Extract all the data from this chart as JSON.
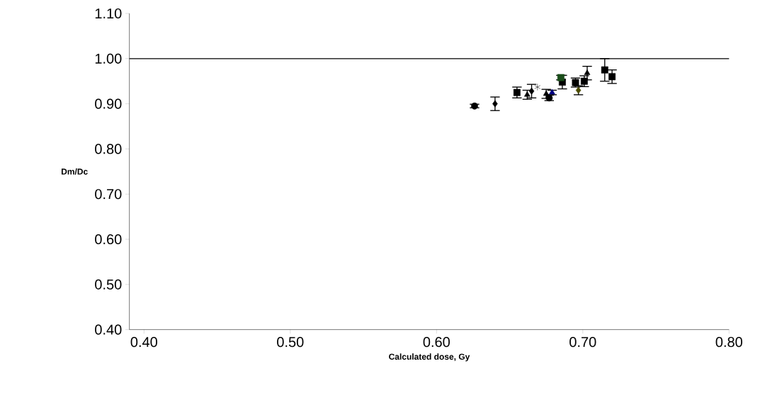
{
  "chart_data": {
    "type": "scatter",
    "xlabel": "Calculated dose, Gy",
    "ylabel": "Dm/Dc",
    "xlim": [
      0.39,
      0.8
    ],
    "ylim": [
      0.4,
      1.1
    ],
    "xticks": [
      {
        "value": 0.4,
        "label": "0.40"
      },
      {
        "value": 0.5,
        "label": "0.50"
      },
      {
        "value": 0.6,
        "label": "0.60"
      },
      {
        "value": 0.7,
        "label": "0.70"
      },
      {
        "value": 0.8,
        "label": "0.80"
      }
    ],
    "yticks": [
      {
        "value": 0.4,
        "label": "0.40"
      },
      {
        "value": 0.5,
        "label": "0.50"
      },
      {
        "value": 0.6,
        "label": "0.60"
      },
      {
        "value": 0.7,
        "label": "0.70"
      },
      {
        "value": 0.8,
        "label": "0.80"
      },
      {
        "value": 0.9,
        "label": "0.90"
      },
      {
        "value": 1.0,
        "label": "1.00"
      },
      {
        "value": 1.1,
        "label": "1.10"
      }
    ],
    "grid": false,
    "ref_lines": [
      {
        "axis": "y",
        "value": 1.0,
        "color": "#000000"
      }
    ],
    "series": [
      {
        "color": "#000000",
        "marker": "circle",
        "x": [
          0.626,
          0.677
        ],
        "values": [
          0.895,
          0.913
        ],
        "errors": [
          0.004,
          0.006
        ]
      },
      {
        "color": "#000000",
        "marker": "diamond",
        "x": [
          0.64,
          0.665
        ],
        "values": [
          0.9,
          0.928
        ],
        "errors": [
          0.015,
          0.015
        ]
      },
      {
        "color": "#4d4d00",
        "marker": "diamond",
        "x": [
          0.697
        ],
        "values": [
          0.93
        ],
        "errors": [
          0.01
        ]
      },
      {
        "color": "#000000",
        "marker": "square",
        "x": [
          0.655,
          0.686,
          0.695,
          0.701,
          0.72
        ],
        "values": [
          0.925,
          0.948,
          0.947,
          0.95,
          0.96
        ],
        "errors": [
          0.012,
          0.015,
          0.01,
          0.012,
          0.015
        ]
      },
      {
        "color": "#1a4d1a",
        "marker": "square",
        "x": [
          0.685
        ],
        "values": [
          0.958
        ],
        "errors": [
          0.005
        ]
      },
      {
        "color": "#000000",
        "marker": "triangle",
        "x": [
          0.662,
          0.675,
          0.703
        ],
        "values": [
          0.92,
          0.922,
          0.968
        ],
        "errors": [
          0.01,
          0.01,
          0.015
        ]
      },
      {
        "color": "#000080",
        "marker": "triangle",
        "x": [
          0.679
        ],
        "values": [
          0.925
        ],
        "errors": [
          0.005
        ]
      },
      {
        "color": "#000000",
        "marker": "cross",
        "x": [
          0.669
        ],
        "values": [
          0.937
        ],
        "errors": [
          null
        ]
      },
      {
        "color": "#000000",
        "marker": "square",
        "x": [
          0.715
        ],
        "values": [
          0.975
        ],
        "errors": [
          0.025
        ]
      }
    ]
  }
}
